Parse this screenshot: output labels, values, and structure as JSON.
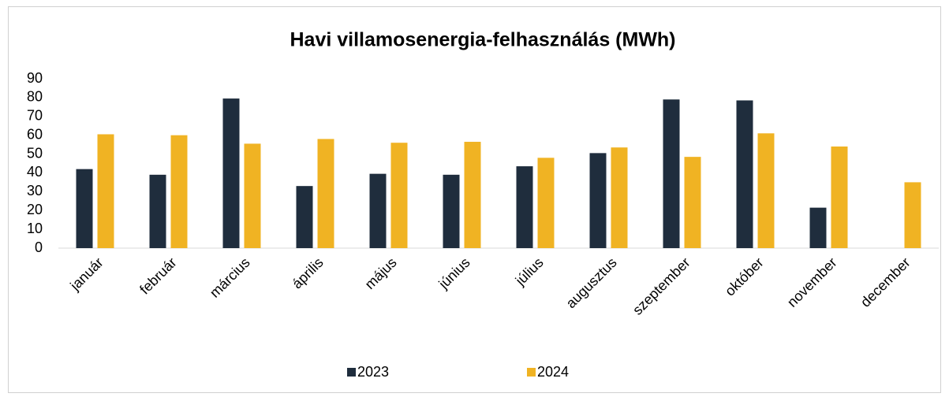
{
  "chart_data": {
    "type": "bar",
    "title": "Havi villamosenergia-felhasználás (MWh)",
    "categories": [
      "január",
      "február",
      "március",
      "április",
      "május",
      "június",
      "július",
      "augusztus",
      "szeptember",
      "október",
      "november",
      "december"
    ],
    "series": [
      {
        "name": "2023",
        "color": "#1f2d3d",
        "values": [
          42,
          39,
          79.5,
          33,
          39.5,
          39,
          43.5,
          50.5,
          79,
          78.5,
          21.5,
          null
        ]
      },
      {
        "name": "2024",
        "color": "#f0b323",
        "values": [
          60.5,
          60,
          55.5,
          58,
          56,
          56.5,
          48,
          53.5,
          48.5,
          61,
          54,
          35
        ]
      }
    ],
    "ylim": [
      0,
      90
    ],
    "yticks": [
      0,
      10,
      20,
      30,
      40,
      50,
      60,
      70,
      80,
      90
    ],
    "grid": false,
    "legend": "bottom"
  }
}
